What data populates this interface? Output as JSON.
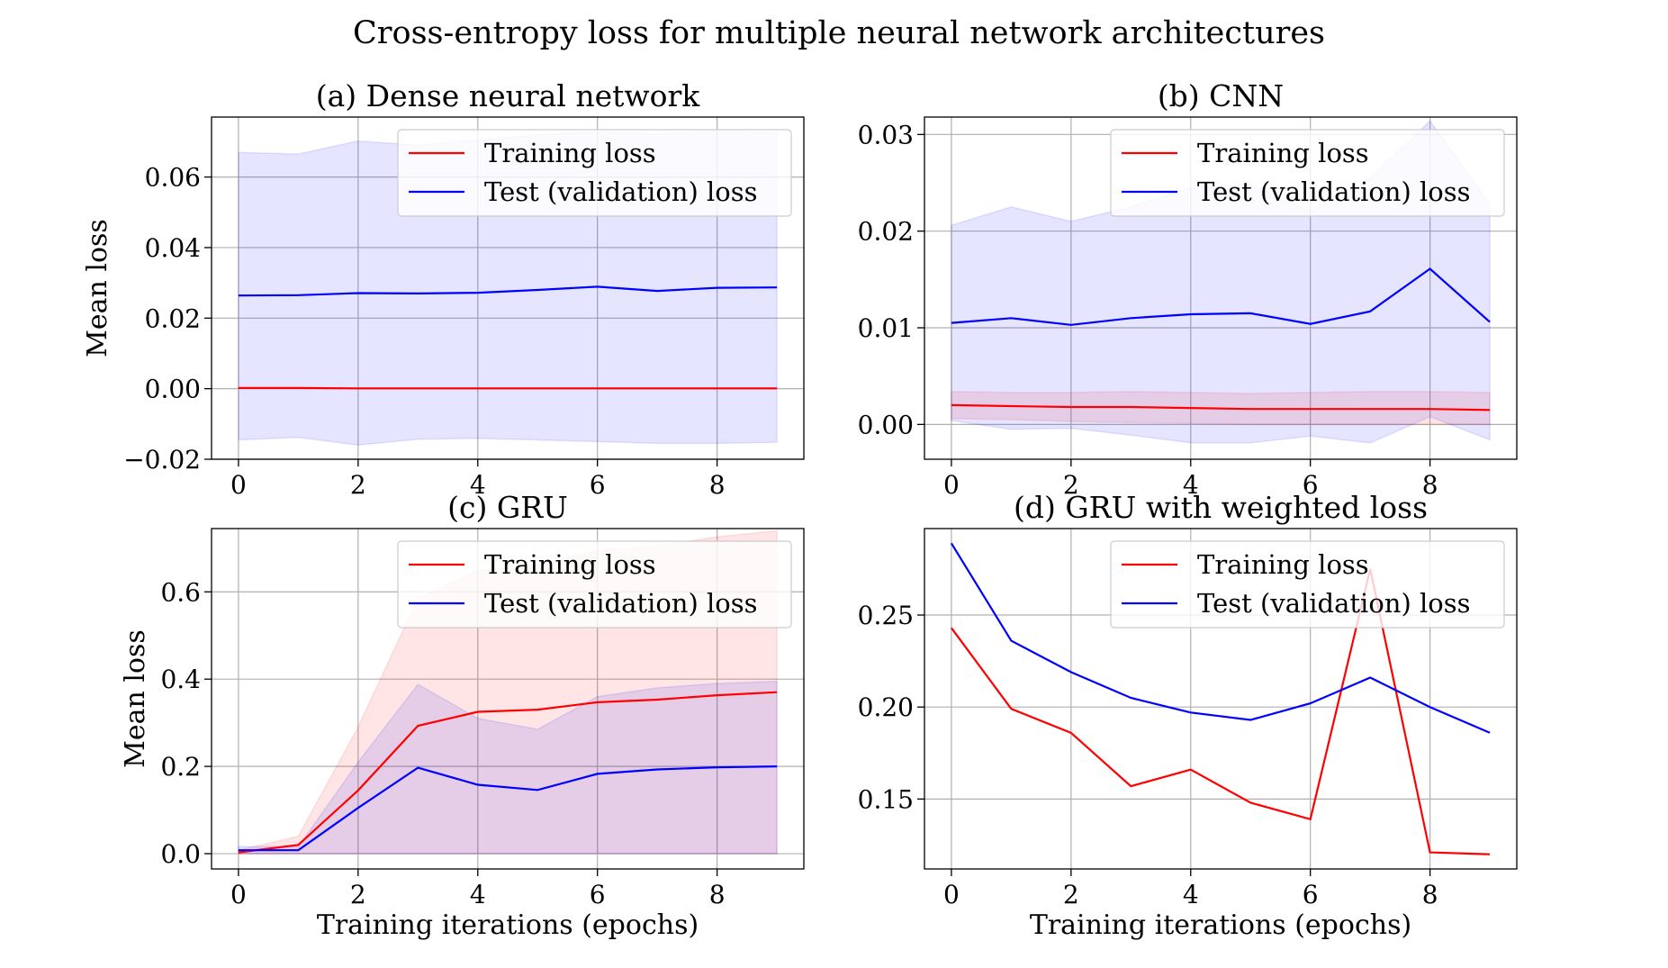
{
  "figure": {
    "title": "Cross-entropy loss for multiple neural network architectures"
  },
  "colors": {
    "training": "#ff0000",
    "test": "#0000ff",
    "training_band": "#ff0000",
    "test_band": "#0000ff",
    "grid": "#b0b0b0"
  },
  "chart_data": [
    {
      "type": "line",
      "title": "(a) Dense neural network",
      "xlabel": "",
      "ylabel": "Mean loss",
      "xlim": [
        -0.45,
        9.45
      ],
      "ylim": [
        -0.02,
        0.077
      ],
      "xticks": [
        0,
        2,
        4,
        6,
        8
      ],
      "xtick_labels": [
        "0",
        "2",
        "4",
        "6",
        "8"
      ],
      "yticks": [
        -0.02,
        0.0,
        0.02,
        0.04,
        0.06
      ],
      "ytick_labels": [
        "−0.02",
        "0.00",
        "0.02",
        "0.04",
        "0.06"
      ],
      "grid": true,
      "legend_position": "upper right",
      "x": [
        0,
        1,
        2,
        3,
        4,
        5,
        6,
        7,
        8,
        9
      ],
      "series": [
        {
          "name": "Training loss",
          "color": "#ff0000",
          "values": [
            0.0002,
            0.0002,
            0.0001,
            0.0001,
            0.0001,
            0.0001,
            0.0001,
            0.0001,
            0.0001,
            0.0001
          ],
          "band_upper": [
            0.0003,
            0.0003,
            0.0002,
            0.0002,
            0.0002,
            0.0002,
            0.0002,
            0.0002,
            0.0002,
            0.0002
          ],
          "band_lower": [
            0.0001,
            0.0001,
            0.0,
            0.0,
            0.0,
            0.0,
            0.0,
            0.0,
            0.0,
            0.0
          ]
        },
        {
          "name": "Test (validation) loss",
          "color": "#0000ff",
          "values": [
            0.0264,
            0.0265,
            0.0271,
            0.027,
            0.0272,
            0.028,
            0.0289,
            0.0277,
            0.0286,
            0.0287
          ],
          "band_upper": [
            0.067,
            0.0665,
            0.0702,
            0.069,
            0.0705,
            0.072,
            0.0728,
            0.0722,
            0.073,
            0.0725
          ],
          "band_lower": [
            -0.0145,
            -0.0138,
            -0.016,
            -0.0143,
            -0.0141,
            -0.0145,
            -0.015,
            -0.0155,
            -0.0155,
            -0.0152
          ]
        }
      ]
    },
    {
      "type": "line",
      "title": "(b) CNN",
      "xlabel": "",
      "ylabel": "",
      "xlim": [
        -0.45,
        9.45
      ],
      "ylim": [
        -0.0036,
        0.0318
      ],
      "xticks": [
        0,
        2,
        4,
        6,
        8
      ],
      "xtick_labels": [
        "0",
        "2",
        "4",
        "6",
        "8"
      ],
      "yticks": [
        0.0,
        0.01,
        0.02,
        0.03
      ],
      "ytick_labels": [
        "0.00",
        "0.01",
        "0.02",
        "0.03"
      ],
      "grid": true,
      "legend_position": "upper right",
      "x": [
        0,
        1,
        2,
        3,
        4,
        5,
        6,
        7,
        8,
        9
      ],
      "series": [
        {
          "name": "Training loss",
          "color": "#ff0000",
          "values": [
            0.002,
            0.0019,
            0.0018,
            0.0018,
            0.0017,
            0.0016,
            0.0016,
            0.0016,
            0.0016,
            0.0015
          ],
          "band_upper": [
            0.0034,
            0.0033,
            0.0033,
            0.0034,
            0.0033,
            0.0032,
            0.0033,
            0.0034,
            0.0034,
            0.0033
          ],
          "band_lower": [
            0.0006,
            0.0005,
            0.0003,
            0.0002,
            0.0001,
            0.0,
            0.0,
            0.0,
            0.0,
            0.0
          ]
        },
        {
          "name": "Test (validation) loss",
          "color": "#0000ff",
          "values": [
            0.0105,
            0.011,
            0.0103,
            0.011,
            0.0114,
            0.0115,
            0.0104,
            0.0117,
            0.0161,
            0.0106
          ],
          "band_upper": [
            0.0206,
            0.0225,
            0.021,
            0.0225,
            0.0245,
            0.0248,
            0.022,
            0.0255,
            0.0314,
            0.0228
          ],
          "band_lower": [
            0.0004,
            -0.0005,
            -0.0004,
            -0.0011,
            -0.0019,
            -0.0019,
            -0.0012,
            -0.0019,
            0.0008,
            -0.0016
          ]
        }
      ]
    },
    {
      "type": "line",
      "title": "(c) GRU",
      "xlabel": "Training iterations (epochs)",
      "ylabel": "Mean loss",
      "xlim": [
        -0.45,
        9.45
      ],
      "ylim": [
        -0.035,
        0.745
      ],
      "xticks": [
        0,
        2,
        4,
        6,
        8
      ],
      "xtick_labels": [
        "0",
        "2",
        "4",
        "6",
        "8"
      ],
      "yticks": [
        0.0,
        0.2,
        0.4,
        0.6
      ],
      "ytick_labels": [
        "0.0",
        "0.2",
        "0.4",
        "0.6"
      ],
      "grid": true,
      "legend_position": "upper right",
      "x": [
        0,
        1,
        2,
        3,
        4,
        5,
        6,
        7,
        8,
        9
      ],
      "series": [
        {
          "name": "Training loss",
          "color": "#ff0000",
          "values": [
            0.003,
            0.02,
            0.145,
            0.293,
            0.325,
            0.33,
            0.347,
            0.353,
            0.363,
            0.37
          ],
          "band_upper": [
            0.008,
            0.04,
            0.29,
            0.585,
            0.65,
            0.66,
            0.695,
            0.705,
            0.726,
            0.74
          ],
          "band_lower": [
            0.0,
            0.0,
            0.0,
            0.0,
            0.0,
            0.0,
            0.0,
            0.0,
            0.0,
            0.0
          ]
        },
        {
          "name": "Test (validation) loss",
          "color": "#0000ff",
          "values": [
            0.008,
            0.008,
            0.105,
            0.197,
            0.158,
            0.146,
            0.183,
            0.193,
            0.198,
            0.2
          ],
          "band_upper": [
            0.016,
            0.016,
            0.21,
            0.388,
            0.31,
            0.285,
            0.36,
            0.38,
            0.39,
            0.395
          ],
          "band_lower": [
            0.0,
            0.0,
            0.0,
            0.0,
            0.0,
            0.0,
            0.0,
            0.0,
            0.0,
            0.0
          ]
        }
      ]
    },
    {
      "type": "line",
      "title": "(d) GRU with weighted loss",
      "xlabel": "Training iterations (epochs)",
      "ylabel": "",
      "xlim": [
        -0.45,
        9.45
      ],
      "ylim": [
        0.112,
        0.297
      ],
      "xticks": [
        0,
        2,
        4,
        6,
        8
      ],
      "xtick_labels": [
        "0",
        "2",
        "4",
        "6",
        "8"
      ],
      "yticks": [
        0.15,
        0.2,
        0.25
      ],
      "ytick_labels": [
        "0.15",
        "0.20",
        "0.25"
      ],
      "grid": true,
      "legend_position": "upper right",
      "x": [
        0,
        1,
        2,
        3,
        4,
        5,
        6,
        7,
        8,
        9
      ],
      "series": [
        {
          "name": "Training loss",
          "color": "#ff0000",
          "values": [
            0.243,
            0.199,
            0.186,
            0.157,
            0.166,
            0.148,
            0.139,
            0.275,
            0.121,
            0.12
          ]
        },
        {
          "name": "Test (validation) loss",
          "color": "#0000ff",
          "values": [
            0.289,
            0.236,
            0.219,
            0.205,
            0.197,
            0.193,
            0.202,
            0.216,
            0.2,
            0.186
          ]
        }
      ]
    }
  ]
}
